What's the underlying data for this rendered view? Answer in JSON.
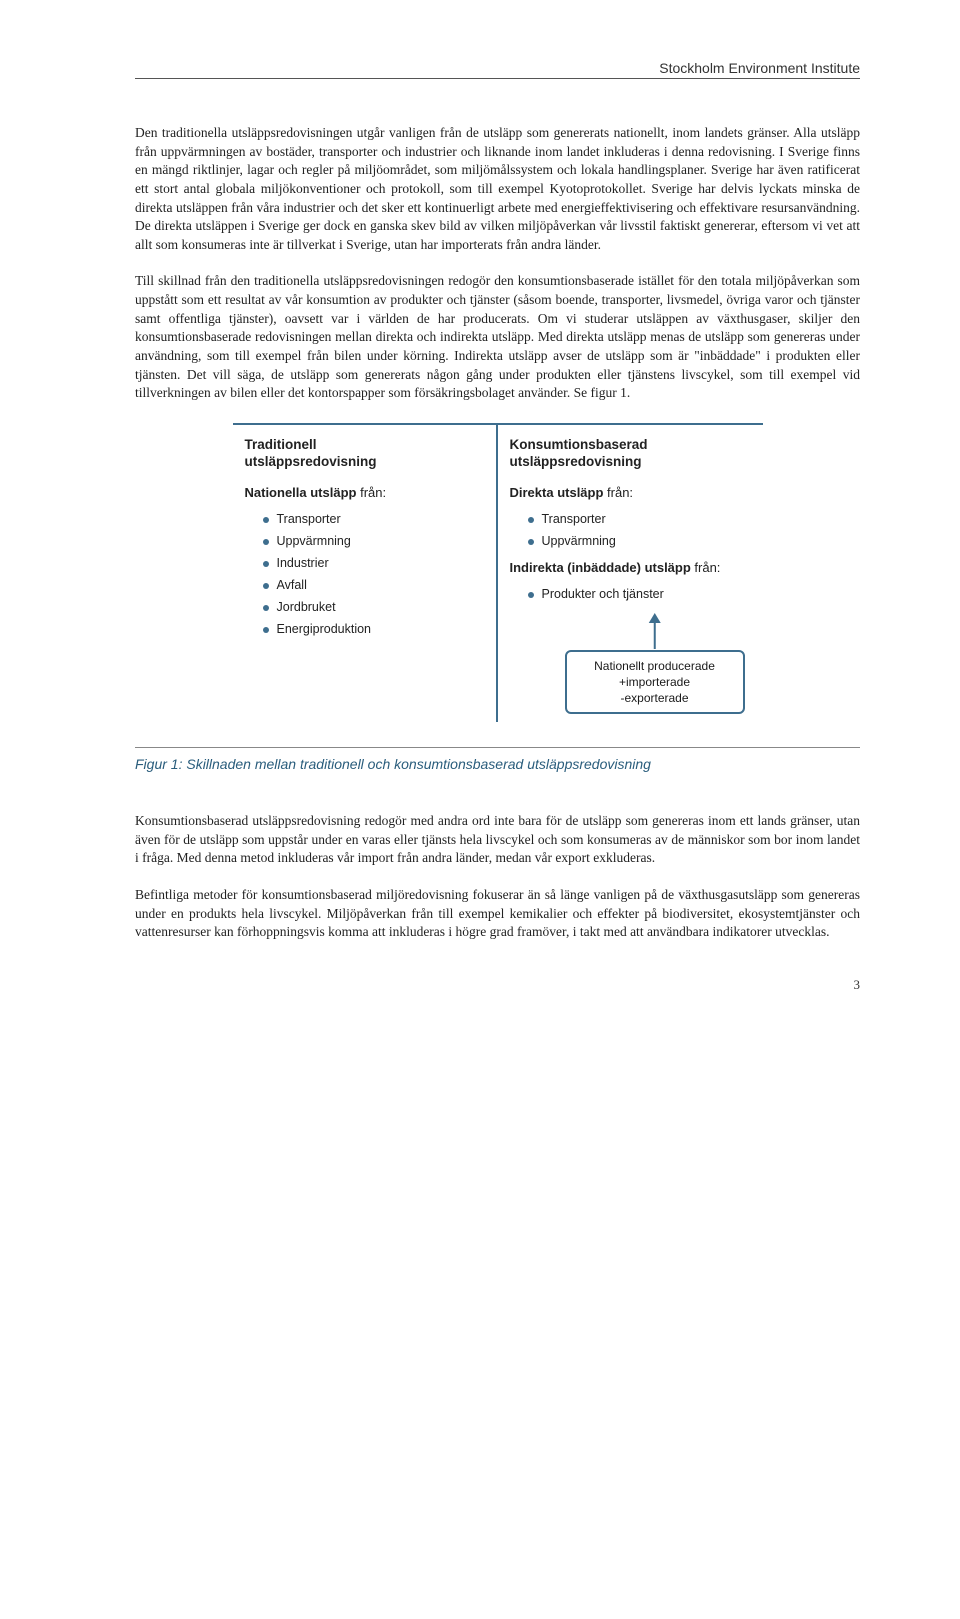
{
  "header": {
    "institute": "Stockholm Environment Institute"
  },
  "paragraphs": {
    "p1": "Den traditionella utsläppsredovisningen utgår vanligen från de utsläpp som genererats nationellt, inom landets gränser. Alla utsläpp från uppvärmningen av bostäder, transporter och industrier och liknande inom landet inkluderas i denna redovisning. I Sverige finns en mängd riktlinjer, lagar och regler på miljöområdet, som miljömålssystem och lokala handlingsplaner. Sverige har även ratificerat ett stort antal globala miljökonventioner och protokoll, som till exempel Kyotoprotokollet. Sverige har delvis lyckats minska de direkta utsläppen från våra industrier och det sker ett kontinuerligt arbete med energieffektivisering och effektivare resursanvändning. De direkta utsläppen i Sverige ger dock en ganska skev bild av vilken miljöpåverkan vår livsstil faktiskt genererar, eftersom vi vet att allt som konsumeras inte är tillverkat i Sverige, utan har importerats från andra länder.",
    "p2": "Till skillnad från den traditionella utsläppsredovisningen redogör den konsumtionsbaserade istället för den totala miljöpåverkan som uppstått som ett resultat av vår konsumtion av produkter och tjänster (såsom boende, transporter, livsmedel, övriga varor och tjänster samt offentliga tjänster), oavsett var i världen de har producerats. Om vi studerar utsläppen av växthusgaser, skiljer den konsumtionsbaserade redovisningen mellan direkta och indirekta utsläpp. Med direkta utsläpp menas de utsläpp som genereras under användning, som till exempel från bilen under körning. Indirekta utsläpp avser de utsläpp som är \"inbäddade\" i produkten eller tjänsten. Det vill säga, de utsläpp som genererats någon gång under produkten eller tjänstens livscykel, som till exempel vid tillverkningen av bilen eller det kontorspapper som försäkringsbolaget använder. Se figur 1.",
    "p3": "Konsumtionsbaserad utsläppsredovisning redogör med andra ord inte bara för de utsläpp som genereras inom ett lands gränser, utan även för de utsläpp som uppstår under en varas eller tjänsts hela livscykel och som konsumeras av de människor som bor inom landet i fråga. Med denna metod inkluderas vår import från andra länder, medan vår export exkluderas.",
    "p4": "Befintliga metoder för konsumtionsbaserad miljöredovisning fokuserar än så länge vanligen på de växthusgasutsläpp som genereras under en produkts hela livscykel. Miljöpåverkan från till exempel kemikalier och effekter på biodiversitet, ekosystemtjänster och vattenresurser kan förhoppningsvis komma att inkluderas i högre grad framöver, i takt med att användbara indikatorer utvecklas."
  },
  "diagram": {
    "accent_color": "#3e6e8e",
    "left": {
      "title1": "Traditionell",
      "title2": "utsläppsredovisning",
      "sub_bold": "Nationella utsläpp",
      "sub_rest": " från:",
      "items": [
        "Transporter",
        "Uppvärmning",
        "Industrier",
        "Avfall",
        "Jordbruket",
        "Energiproduktion"
      ]
    },
    "right": {
      "title1": "Konsumtionsbaserad",
      "title2": "utsläppsredovisning",
      "sub1_bold": "Direkta utsläpp",
      "sub1_rest": " från:",
      "items1": [
        "Transporter",
        "Uppvärmning"
      ],
      "sub2_bold": "Indirekta (inbäddade) utsläpp",
      "sub2_rest": " från:",
      "items2": [
        "Produkter och tjänster"
      ],
      "box_l1": "Nationellt producerade",
      "box_l2": "+importerade",
      "box_l3": "-exporterade"
    }
  },
  "figure_caption": "Figur 1: Skillnaden mellan traditionell och konsumtionsbaserad utsläppsredovisning",
  "page_number": "3"
}
